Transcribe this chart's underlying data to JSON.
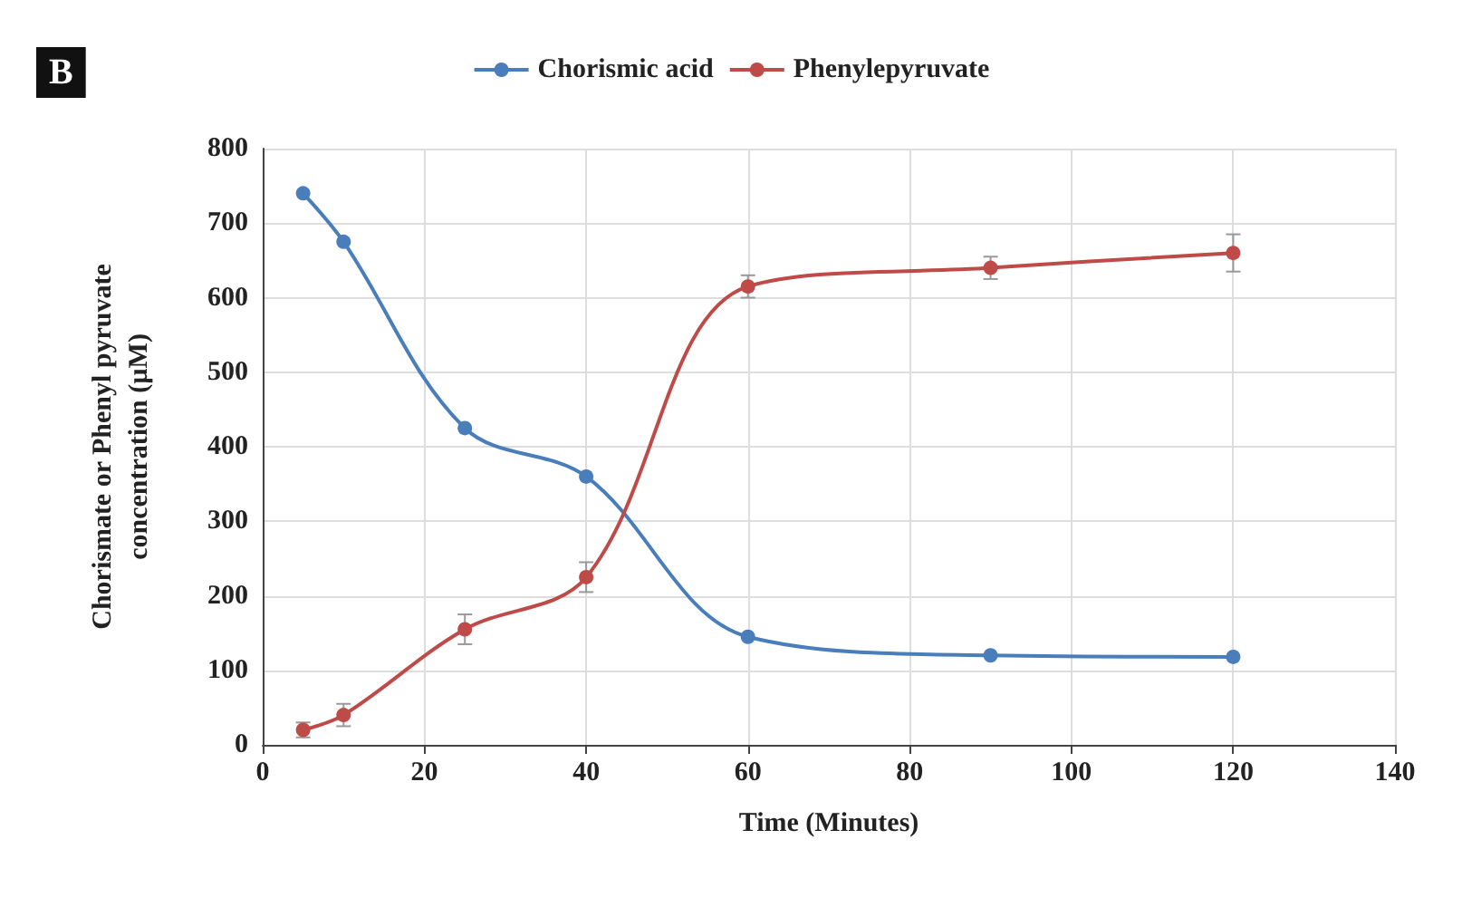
{
  "chart_data": {
    "type": "line",
    "xlabel": "Time (Minutes)",
    "ylabel": "Chorismate or Phenyl pyruvate\nconcentration (µM)",
    "annotations": [
      "B"
    ],
    "x": [
      5,
      10,
      25,
      40,
      60,
      90,
      120
    ],
    "series": [
      {
        "name": "Chorismic acid",
        "color": "#4a7ebb",
        "values": [
          740,
          675,
          425,
          360,
          145,
          120,
          118
        ]
      },
      {
        "name": "Phenylepyruvate",
        "color": "#be4b48",
        "values": [
          20,
          40,
          155,
          225,
          615,
          640,
          660
        ],
        "errors": [
          10,
          15,
          20,
          20,
          15,
          15,
          25
        ]
      }
    ],
    "xlim": [
      0,
      140
    ],
    "xticks": [
      0,
      20,
      40,
      60,
      80,
      100,
      120,
      140
    ],
    "ylim": [
      0,
      800
    ],
    "yticks": [
      0,
      100,
      200,
      300,
      400,
      500,
      600,
      700,
      800
    ],
    "grid": true,
    "legend": "top",
    "marker": "circle",
    "line_style": "solid"
  }
}
